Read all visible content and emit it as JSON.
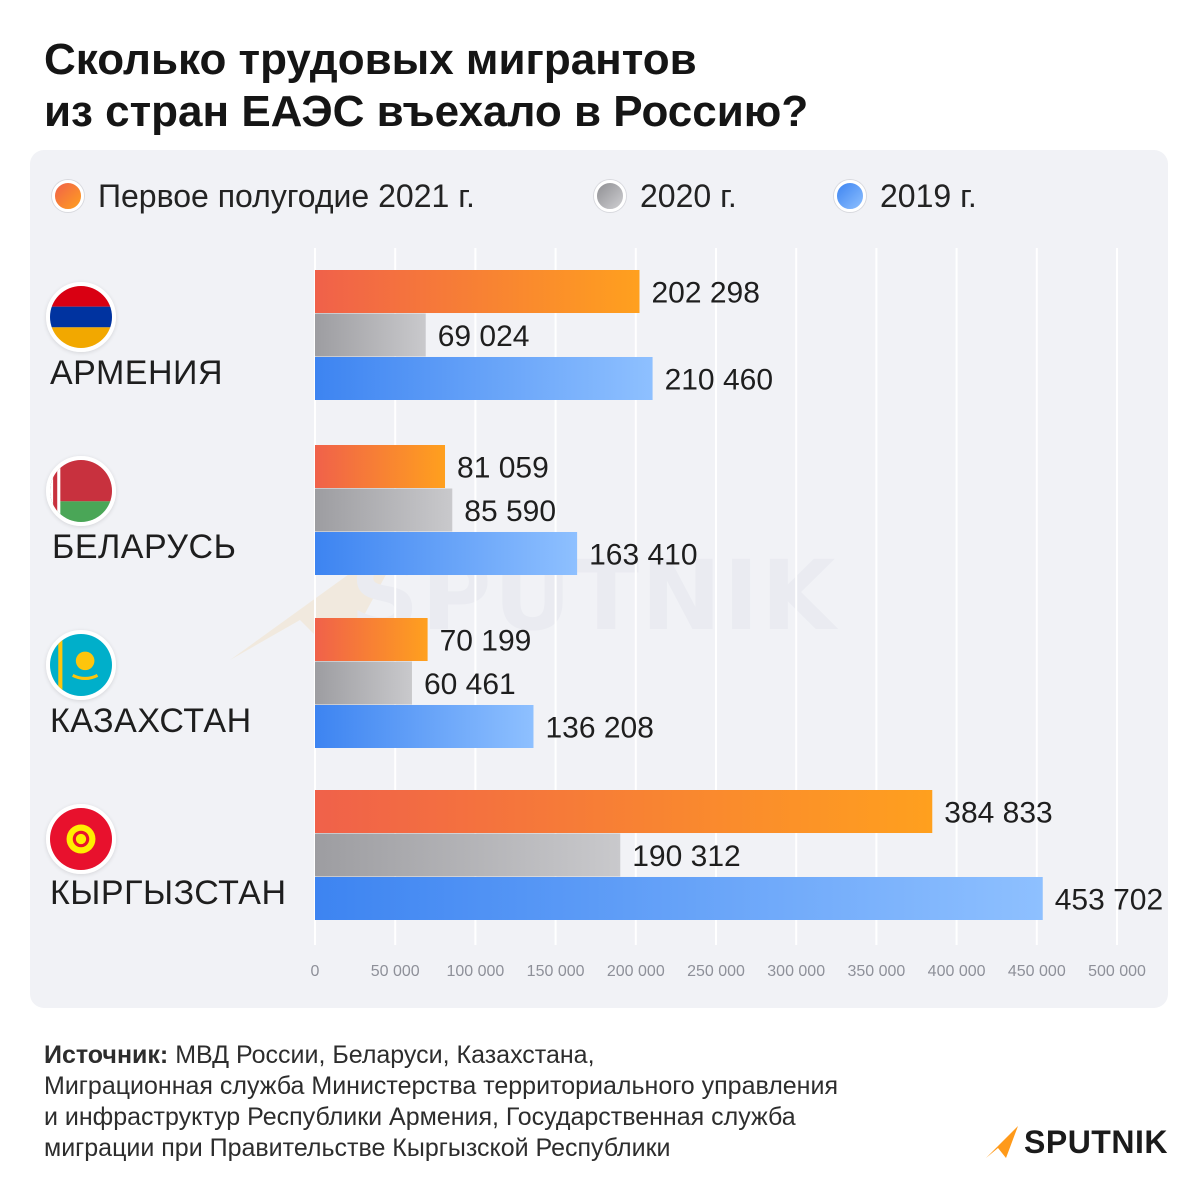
{
  "title": {
    "line1": "Сколько трудовых мигрантов",
    "line2": "из стран ЕАЭС въехало в Россию?"
  },
  "legend": [
    {
      "label": "Первое полугодие 2021 г.",
      "color": "#f0614a"
    },
    {
      "label": "2020 г.",
      "color": "#a9a9ad"
    },
    {
      "label": "2019 г.",
      "color": "#3f86f2"
    }
  ],
  "countries": [
    {
      "name": "АРМЕНИЯ",
      "flag": "armenia-flag-icon"
    },
    {
      "name": "БЕЛАРУСЬ",
      "flag": "belarus-flag-icon"
    },
    {
      "name": "КАЗАХСТАН",
      "flag": "kazakhstan-flag-icon"
    },
    {
      "name": "КЫРГЫЗСТАН",
      "flag": "kyrgyzstan-flag-icon"
    }
  ],
  "chart_data": {
    "type": "bar",
    "orientation": "horizontal",
    "title": "Сколько трудовых мигрантов из стран ЕАЭС въехало в Россию?",
    "categories": [
      "АРМЕНИЯ",
      "БЕЛАРУСЬ",
      "КАЗАХСТАН",
      "КЫРГЫЗСТАН"
    ],
    "series": [
      {
        "name": "Первое полугодие 2021 г.",
        "values": [
          202298,
          81059,
          70199,
          384833
        ],
        "labels": [
          "202 298",
          "81 059",
          "70 199",
          "384 833"
        ],
        "colors": [
          "#f0614a",
          "#ffa01e"
        ]
      },
      {
        "name": "2020 г.",
        "values": [
          69024,
          85590,
          60461,
          190312
        ],
        "labels": [
          "69 024",
          "85 590",
          "60 461",
          "190 312"
        ],
        "colors": [
          "#9d9da1",
          "#c9c9cc"
        ]
      },
      {
        "name": "2019 г.",
        "values": [
          210460,
          163410,
          136208,
          453702
        ],
        "labels": [
          "210 460",
          "163 410",
          "136 208",
          "453 702"
        ],
        "colors": [
          "#3d84f1",
          "#8ec0ff"
        ]
      }
    ],
    "xlim": [
      0,
      500000
    ],
    "ticks": [
      0,
      50000,
      100000,
      150000,
      200000,
      250000,
      300000,
      350000,
      400000,
      450000,
      500000
    ],
    "tick_labels": [
      "0",
      "50 000",
      "100 000",
      "150 000",
      "200 000",
      "250 000",
      "300 000",
      "350 000",
      "400 000",
      "450 000",
      "500 000"
    ],
    "grid": true,
    "legend_position": "top"
  },
  "watermark": "SPUTNIK",
  "source": {
    "label": "Источник:",
    "line1": " МВД России, Беларуси, Казахстана,",
    "line2": "Миграционная служба Министерства территориального управления",
    "line3": "и инфраструктур Республики Армения, Государственная служба",
    "line4": "миграции при Правительстве Кыргызской Республики"
  },
  "brand": {
    "name": "SPUTNIK",
    "accent": "#ff9a1a"
  }
}
